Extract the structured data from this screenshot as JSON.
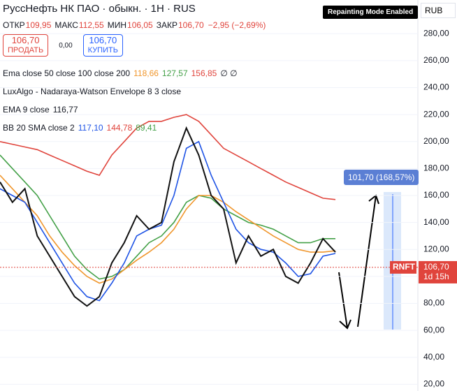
{
  "chart_data": {
    "type": "line",
    "title": "РуссНефть НК ПАО · обыкн. · 1Н · RUS",
    "quote": [
      {
        "label": "ОТКР",
        "value": "109,95"
      },
      {
        "label": "МАКС",
        "value": "112,55"
      },
      {
        "label": "МИН",
        "value": "106,05"
      },
      {
        "label": "ЗАКР",
        "value": "106,70"
      },
      {
        "label": "",
        "value": "−2,95 (−2,69%)"
      }
    ],
    "sell": {
      "price": "106,70",
      "label": "ПРОДАТЬ"
    },
    "spread": "0,00",
    "buy": {
      "price": "106,70",
      "label": "КУПИТЬ"
    },
    "indicators": [
      {
        "name": "Ema close 50 close 100 close 200",
        "values": [
          "118,66",
          "127,57",
          "156,85",
          "∅ ∅"
        ]
      },
      {
        "name": "LuxAlgo - Nadaraya-Watson Envelope 8 3 close",
        "values": []
      },
      {
        "name": "EMA 9 close",
        "values": [
          "116,77"
        ]
      },
      {
        "name": "BB 20 SMA close 2",
        "values": [
          "117,10",
          "144,78",
          "89,41"
        ]
      }
    ],
    "badge": "Repainting Mode Enabled",
    "currency": "RUB",
    "symbol": "RNFT",
    "last_price": {
      "value": 106.7,
      "label": "106,70"
    },
    "countdown": "1d 15h",
    "measure": "101,70 (168,57%)",
    "ylim": [
      15,
      305
    ],
    "yticks": [
      {
        "value": 280,
        "label": "280,00"
      },
      {
        "value": 260,
        "label": "260,00"
      },
      {
        "value": 240,
        "label": "240,00"
      },
      {
        "value": 220,
        "label": "220,00"
      },
      {
        "value": 200,
        "label": "200,00"
      },
      {
        "value": 180,
        "label": "180,00"
      },
      {
        "value": 160,
        "label": "160,00"
      },
      {
        "value": 140,
        "label": "140,00"
      },
      {
        "value": 120,
        "label": "120,00"
      },
      {
        "value": 100,
        "label": "100,00"
      },
      {
        "value": 80,
        "label": "80,00"
      },
      {
        "value": 60,
        "label": "60,00"
      },
      {
        "value": 40,
        "label": "40,00"
      },
      {
        "value": 20,
        "label": "20,00"
      }
    ],
    "categories": [
      null,
      null,
      null,
      null,
      null,
      null,
      null,
      null,
      null,
      null,
      null,
      null,
      null,
      null,
      null,
      null,
      null,
      null,
      null,
      null,
      null,
      null,
      null,
      null,
      null,
      null,
      null,
      null
    ],
    "series": [
      {
        "color": "#e0443c",
        "values": [
          200,
          198,
          196,
          194,
          190,
          186,
          182,
          178,
          175,
          190,
          200,
          210,
          215,
          215,
          218,
          220,
          215,
          205,
          195,
          190,
          185,
          180,
          175,
          170,
          166,
          162,
          158,
          157
        ]
      },
      {
        "color": "#43a047",
        "values": [
          190,
          180,
          170,
          160,
          145,
          130,
          115,
          105,
          98,
          100,
          105,
          115,
          125,
          130,
          140,
          155,
          160,
          158,
          150,
          145,
          140,
          138,
          135,
          130,
          125,
          125,
          128,
          128
        ]
      },
      {
        "color": "#f0962c",
        "values": [
          175,
          165,
          155,
          145,
          130,
          118,
          108,
          100,
          95,
          98,
          105,
          112,
          118,
          125,
          135,
          150,
          160,
          160,
          155,
          148,
          142,
          136,
          130,
          125,
          120,
          118,
          118,
          119
        ]
      },
      {
        "color": "#1e53e5",
        "values": [
          165,
          160,
          155,
          140,
          125,
          110,
          95,
          85,
          82,
          95,
          110,
          130,
          135,
          138,
          160,
          195,
          200,
          175,
          155,
          135,
          125,
          120,
          118,
          110,
          100,
          102,
          115,
          117
        ]
      },
      {
        "color": "#111111",
        "values": [
          170,
          155,
          165,
          130,
          115,
          100,
          85,
          78,
          85,
          110,
          125,
          145,
          135,
          140,
          185,
          210,
          190,
          160,
          150,
          110,
          130,
          115,
          120,
          100,
          95,
          110,
          128,
          118
        ]
      }
    ]
  }
}
